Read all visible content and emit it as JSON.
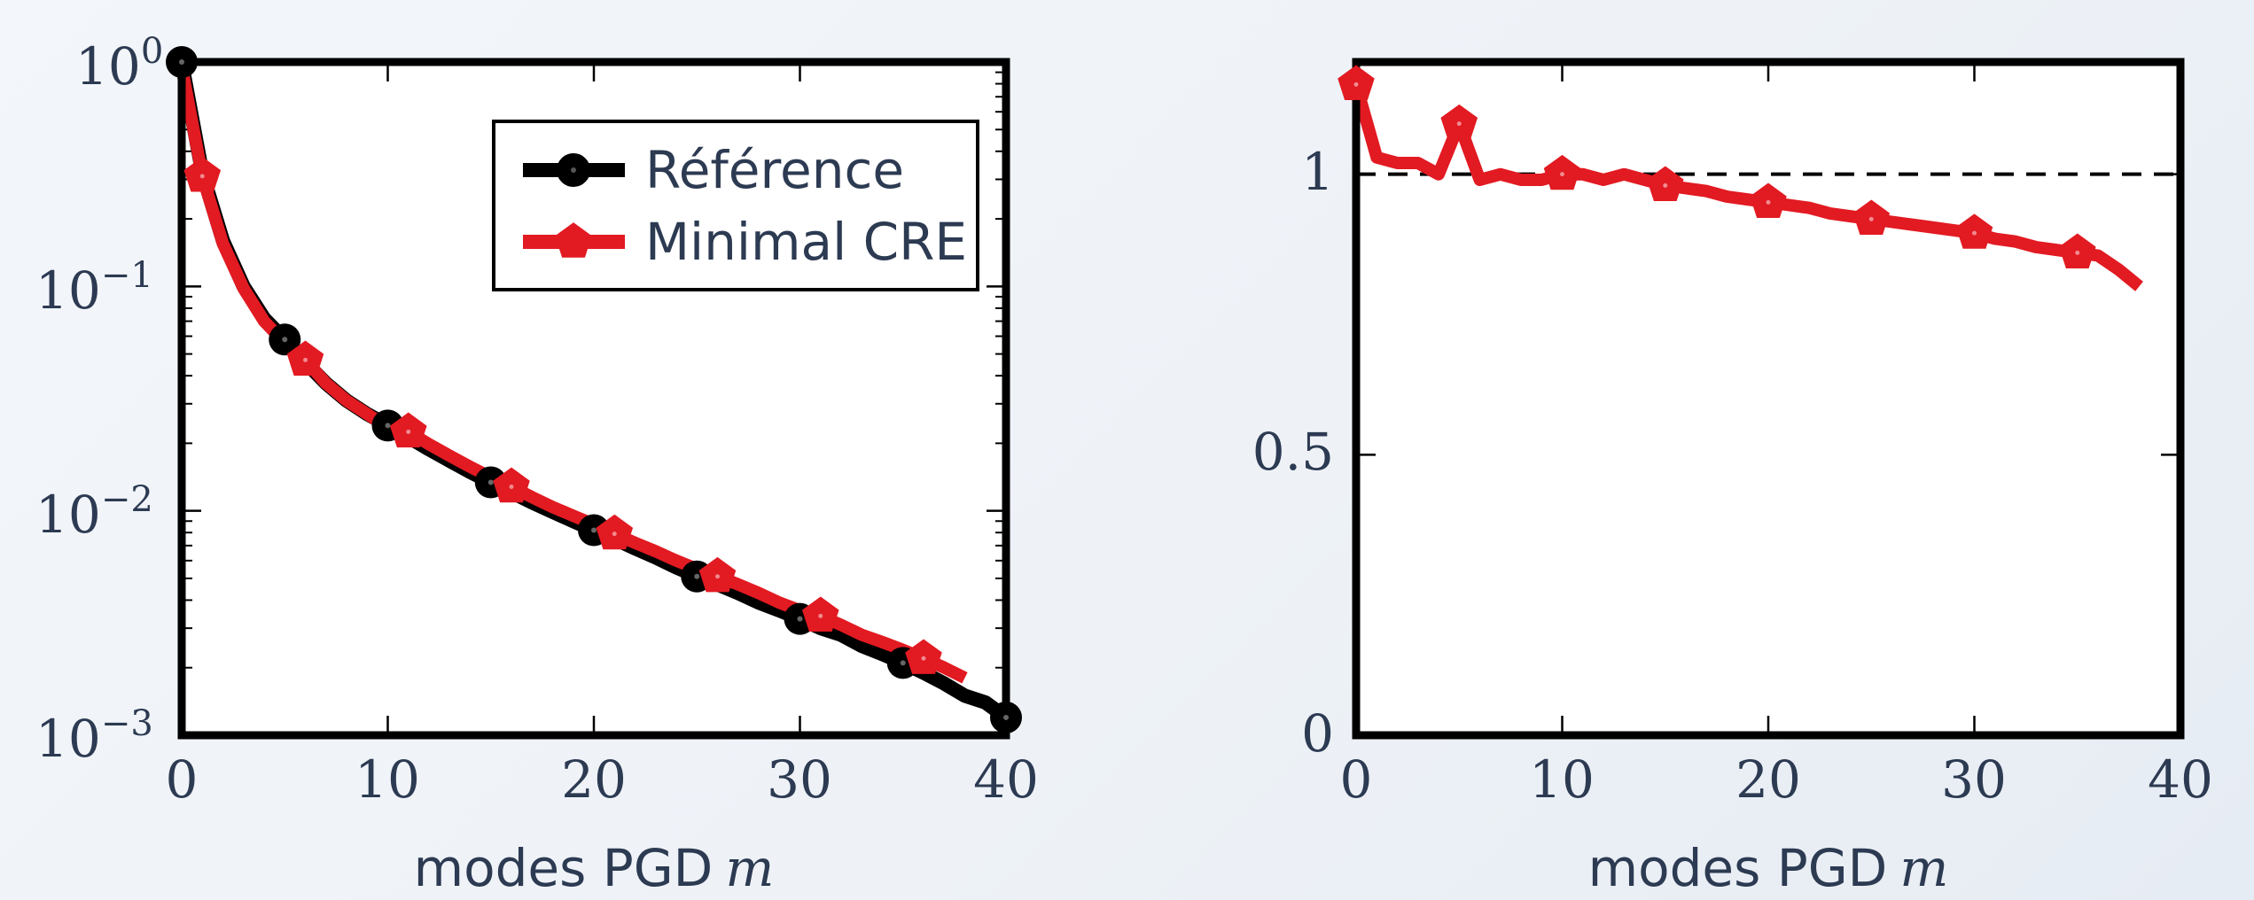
{
  "colors": {
    "reference": "#000000",
    "minimal_cre": "#e21a22",
    "text": "#2c3a52",
    "frame": "#000000"
  },
  "chart_data": [
    {
      "type": "line",
      "yscale": "log",
      "xlim": [
        0,
        40
      ],
      "ylim": [
        0.001,
        1
      ],
      "xticks": [
        0,
        10,
        20,
        30,
        40
      ],
      "xtick_labels": [
        "0",
        "10",
        "20",
        "30",
        "40"
      ],
      "yticks": [
        1,
        0.1,
        0.01,
        0.001
      ],
      "ytick_labels": [
        {
          "base": "10",
          "exp": "0"
        },
        {
          "base": "10",
          "exp": "−1"
        },
        {
          "base": "10",
          "exp": "−2"
        },
        {
          "base": "10",
          "exp": "−3"
        }
      ],
      "xlabel": "modes PGD",
      "xlabel_var": "m",
      "ylabel": "",
      "grid": false,
      "legend": "top-right",
      "series": [
        {
          "name": "Référence",
          "marker": "circle",
          "mark_every": 5,
          "x": [
            0,
            1,
            2,
            3,
            4,
            5,
            6,
            7,
            8,
            9,
            10,
            11,
            12,
            13,
            14,
            15,
            16,
            17,
            18,
            19,
            20,
            21,
            22,
            23,
            24,
            25,
            26,
            27,
            28,
            29,
            30,
            31,
            32,
            33,
            34,
            35,
            36,
            37,
            38,
            39,
            40
          ],
          "y": [
            1,
            0.32,
            0.16,
            0.1,
            0.072,
            0.058,
            0.046,
            0.037,
            0.031,
            0.027,
            0.024,
            0.0213,
            0.0188,
            0.0167,
            0.0149,
            0.0134,
            0.0121,
            0.0109,
            0.0099,
            0.009,
            0.0082,
            0.0075,
            0.0068,
            0.0062,
            0.0056,
            0.0051,
            0.0047,
            0.0043,
            0.0039,
            0.0036,
            0.0033,
            0.003,
            0.0028,
            0.0025,
            0.0023,
            0.0021,
            0.0019,
            0.0017,
            0.0015,
            0.0014,
            0.0012
          ]
        },
        {
          "name": "Minimal CRE",
          "marker": "pentagon",
          "mark_every": 5,
          "mark_offset": 1,
          "x": [
            0,
            1,
            2,
            3,
            4,
            5,
            6,
            7,
            8,
            9,
            10,
            11,
            12,
            13,
            14,
            15,
            16,
            17,
            18,
            19,
            20,
            21,
            22,
            23,
            24,
            25,
            26,
            27,
            28,
            29,
            30,
            31,
            32,
            33,
            34,
            35,
            36,
            37,
            38
          ],
          "y": [
            0.95,
            0.31,
            0.155,
            0.098,
            0.07,
            0.056,
            0.047,
            0.037,
            0.031,
            0.027,
            0.0235,
            0.0225,
            0.0198,
            0.0176,
            0.0157,
            0.0141,
            0.0128,
            0.0115,
            0.0104,
            0.0095,
            0.0087,
            0.0079,
            0.0072,
            0.0066,
            0.006,
            0.0055,
            0.0051,
            0.0047,
            0.0043,
            0.0039,
            0.0036,
            0.0034,
            0.0031,
            0.0028,
            0.0026,
            0.0024,
            0.0022,
            0.002,
            0.0018
          ]
        }
      ]
    },
    {
      "type": "line",
      "yscale": "linear",
      "xlim": [
        0,
        40
      ],
      "ylim": [
        0,
        1.2
      ],
      "xticks": [
        0,
        10,
        20,
        30,
        40
      ],
      "xtick_labels": [
        "0",
        "10",
        "20",
        "30",
        "40"
      ],
      "yticks": [
        0,
        0.5,
        1
      ],
      "ytick_labels": [
        "0",
        "0.5",
        "1"
      ],
      "xlabel": "modes PGD",
      "xlabel_var": "m",
      "ylabel": "",
      "grid": false,
      "reference_line": 1,
      "series": [
        {
          "name": "",
          "marker": "pentagon",
          "marker_x": [
            0,
            5,
            10,
            15,
            20,
            25,
            30,
            35
          ],
          "x": [
            0,
            1,
            2,
            3,
            4,
            5,
            6,
            7,
            8,
            9,
            10,
            11,
            12,
            13,
            14,
            15,
            16,
            17,
            18,
            19,
            20,
            21,
            22,
            23,
            24,
            25,
            26,
            27,
            28,
            29,
            30,
            31,
            32,
            33,
            34,
            35,
            36,
            37,
            38
          ],
          "y": [
            1.16,
            1.03,
            1.02,
            1.02,
            1.0,
            1.09,
            0.99,
            1.0,
            0.99,
            0.99,
            1.0,
            1.0,
            0.99,
            1.0,
            0.99,
            0.98,
            0.975,
            0.97,
            0.96,
            0.955,
            0.95,
            0.945,
            0.94,
            0.93,
            0.925,
            0.92,
            0.915,
            0.91,
            0.905,
            0.9,
            0.895,
            0.885,
            0.88,
            0.87,
            0.865,
            0.86,
            0.855,
            0.83,
            0.8
          ]
        }
      ]
    }
  ]
}
